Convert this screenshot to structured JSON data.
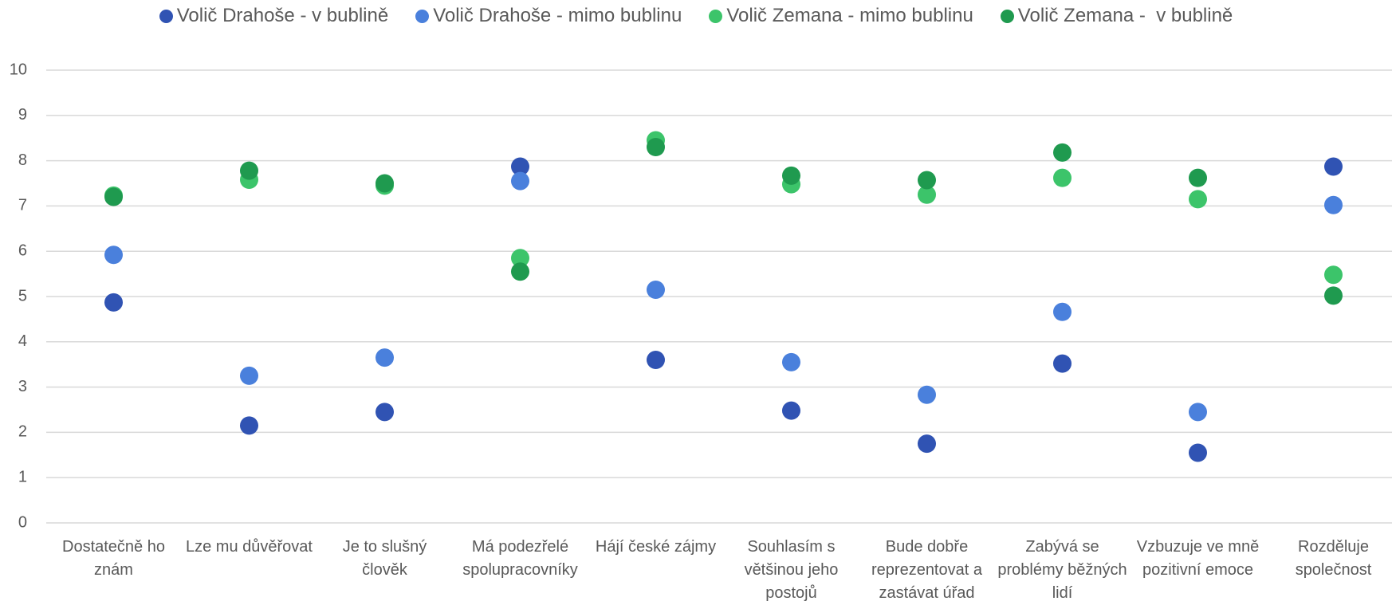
{
  "chart_data": {
    "type": "scatter",
    "categories": [
      "Dostatečně ho znám",
      "Lze mu důvěřovat",
      "Je to slušný člověk",
      "Má podezřelé spolupracovníky",
      "Hájí české zájmy",
      "Souhlasím s většinou jeho postojů",
      "Bude dobře reprezentovat a zastávat úřad",
      "Zabývá se problémy běžných lidí",
      "Vzbuzuje ve mně pozitivní emoce",
      "Rozděluje společnost"
    ],
    "series": [
      {
        "name": "Volič Drahoše - v bublině",
        "color": "#3053b3",
        "values": [
          4.87,
          2.15,
          2.45,
          7.87,
          3.6,
          2.48,
          1.75,
          3.52,
          1.55,
          7.87
        ]
      },
      {
        "name": "Volič Drahoše - mimo bublinu",
        "color": "#4a80dc",
        "values": [
          5.92,
          3.25,
          3.65,
          7.55,
          5.15,
          3.55,
          2.83,
          4.66,
          2.45,
          7.02
        ]
      },
      {
        "name": "Volič Zemana - mimo bublinu",
        "color": "#3cc46a",
        "values": [
          7.23,
          7.58,
          7.45,
          5.85,
          8.45,
          7.48,
          7.25,
          7.62,
          7.15,
          5.48
        ]
      },
      {
        "name": "Volič Zemana -  v bublině",
        "color": "#1f9a4f",
        "values": [
          7.2,
          7.78,
          7.5,
          5.55,
          8.3,
          7.67,
          7.57,
          8.18,
          7.62,
          5.02
        ]
      }
    ],
    "ylim": [
      0,
      10
    ],
    "yticks": [
      0,
      1,
      2,
      3,
      4,
      5,
      6,
      7,
      8,
      9,
      10
    ],
    "grid": true,
    "legend": "top"
  }
}
